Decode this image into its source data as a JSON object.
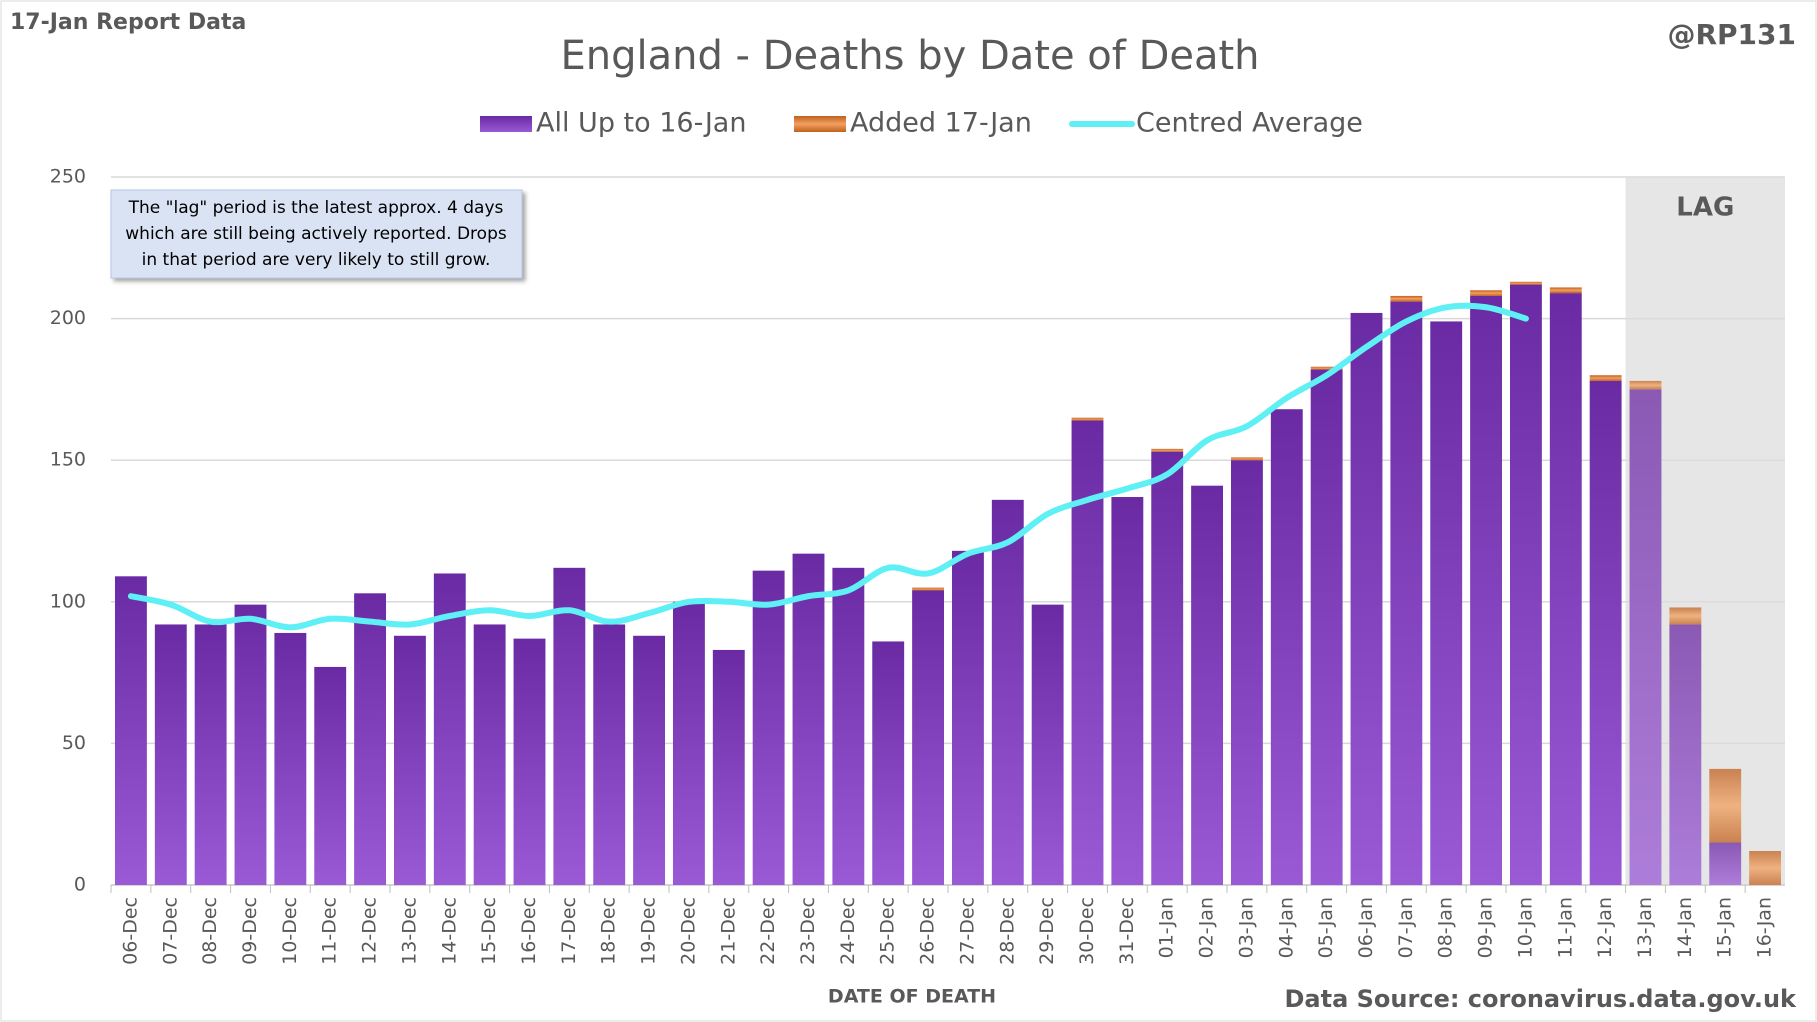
{
  "header": {
    "left": "17-Jan Report Data",
    "right": "@RP131"
  },
  "chart_data": {
    "type": "bar",
    "stacked": true,
    "title": "England - Deaths by Date of Death",
    "annotation": [
      "The \"lag\" period is the latest approx. 4 days",
      "which are still being actively reported.  Drops",
      "in that period are very likely to still grow."
    ],
    "lag": {
      "label": "LAG",
      "from": "13-Jan"
    },
    "x_label": "DATE OF DEATH",
    "source": "Data Source: coronavirus.data.gov.uk",
    "categories": [
      "06-Dec",
      "07-Dec",
      "08-Dec",
      "09-Dec",
      "10-Dec",
      "11-Dec",
      "12-Dec",
      "13-Dec",
      "14-Dec",
      "15-Dec",
      "16-Dec",
      "17-Dec",
      "18-Dec",
      "19-Dec",
      "20-Dec",
      "21-Dec",
      "22-Dec",
      "23-Dec",
      "24-Dec",
      "25-Dec",
      "26-Dec",
      "27-Dec",
      "28-Dec",
      "29-Dec",
      "30-Dec",
      "31-Dec",
      "01-Jan",
      "02-Jan",
      "03-Jan",
      "04-Jan",
      "05-Jan",
      "06-Jan",
      "07-Jan",
      "08-Jan",
      "09-Jan",
      "10-Jan",
      "11-Jan",
      "12-Jan",
      "13-Jan",
      "14-Jan",
      "15-Jan",
      "16-Jan"
    ],
    "series": [
      {
        "name": "All Up to 16-Jan",
        "color": "#7a34b8",
        "values": [
          109,
          92,
          92,
          99,
          89,
          77,
          103,
          88,
          110,
          92,
          87,
          112,
          92,
          88,
          100,
          83,
          111,
          117,
          112,
          86,
          104,
          118,
          136,
          99,
          164,
          137,
          153,
          141,
          150,
          168,
          182,
          202,
          206,
          199,
          208,
          212,
          209,
          178,
          175,
          92,
          15,
          0
        ]
      },
      {
        "name": "Added 17-Jan",
        "color": "#d0702a",
        "values": [
          0,
          0,
          0,
          0,
          0,
          0,
          0,
          0,
          0,
          0,
          0,
          0,
          0,
          0,
          0,
          0,
          0,
          0,
          0,
          0,
          1,
          0,
          0,
          0,
          1,
          0,
          1,
          0,
          1,
          0,
          1,
          0,
          2,
          0,
          2,
          1,
          2,
          2,
          3,
          6,
          26,
          12
        ]
      },
      {
        "name": "Centred Average",
        "type": "line",
        "color": "#5ef0f5",
        "values": [
          102,
          99,
          93,
          94,
          91,
          94,
          93,
          92,
          95,
          97,
          95,
          97,
          93,
          96,
          100,
          100,
          99,
          102,
          104,
          112,
          110,
          117,
          121,
          131,
          136,
          140,
          145,
          157,
          162,
          172,
          180,
          190,
          199,
          204,
          204,
          200,
          null,
          null,
          null,
          null,
          null,
          null
        ]
      }
    ],
    "ylim": [
      0,
      250
    ],
    "yticks": [
      0,
      50,
      100,
      150,
      200,
      250
    ],
    "grid": true,
    "legend": "top"
  }
}
